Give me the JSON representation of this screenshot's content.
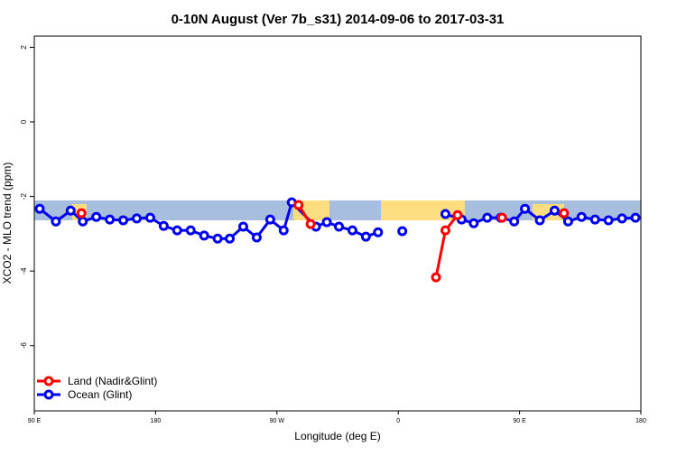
{
  "chart_data": {
    "type": "line",
    "title": "0-10N August (Ver 7b_s31)   2014-09-06 to 2017-03-31",
    "x_label": "Longitude (deg E)",
    "y_label": "XCO2 - MLO trend (ppm)",
    "xlim": [
      90,
      540
    ],
    "xticks": [
      {
        "value": 90,
        "label": "90 E"
      },
      {
        "value": 180,
        "label": "180"
      },
      {
        "value": 270,
        "label": "90 W"
      },
      {
        "value": 360,
        "label": "0"
      },
      {
        "value": 450,
        "label": "90 E"
      },
      {
        "value": 540,
        "label": "180"
      }
    ],
    "ylim": [
      -7.75,
      2.3
    ],
    "yticks": [
      2,
      0,
      -2,
      -4,
      -6
    ],
    "legend": "bottom-left",
    "series": [
      {
        "name": "Land (Nadir&Glint)",
        "color": "#ff0000",
        "x": [
          125,
          null,
          286,
          295,
          null,
          388,
          395,
          404,
          null,
          437,
          null,
          483
        ],
        "values": [
          -2.45,
          null,
          -2.23,
          -2.74,
          null,
          -4.17,
          -2.91,
          -2.5,
          null,
          -2.57,
          null,
          -2.45
        ]
      },
      {
        "name": "Ocean (Glint)",
        "color": "#0000ee",
        "x": [
          94,
          106,
          117,
          126,
          136,
          146,
          156,
          166,
          176,
          186,
          196,
          206,
          216,
          226,
          235,
          245,
          255,
          265,
          275,
          281,
          299,
          307,
          316,
          326,
          336,
          345,
          null,
          363,
          null,
          395,
          407,
          416,
          426,
          436,
          446,
          454,
          465,
          476,
          486,
          496,
          506,
          516,
          526,
          536
        ],
        "values": [
          -2.33,
          -2.67,
          -2.38,
          -2.67,
          -2.55,
          -2.62,
          -2.64,
          -2.59,
          -2.57,
          -2.79,
          -2.91,
          -2.91,
          -3.05,
          -3.13,
          -3.13,
          -2.81,
          -3.1,
          -2.62,
          -2.91,
          -2.16,
          -2.81,
          -2.69,
          -2.81,
          -2.91,
          -3.08,
          -2.96,
          null,
          -2.93,
          null,
          -2.47,
          -2.62,
          -2.72,
          -2.57,
          -2.57,
          -2.67,
          -2.33,
          -2.64,
          -2.38,
          -2.67,
          -2.55,
          -2.62,
          -2.64,
          -2.59,
          -2.57
        ]
      }
    ]
  }
}
